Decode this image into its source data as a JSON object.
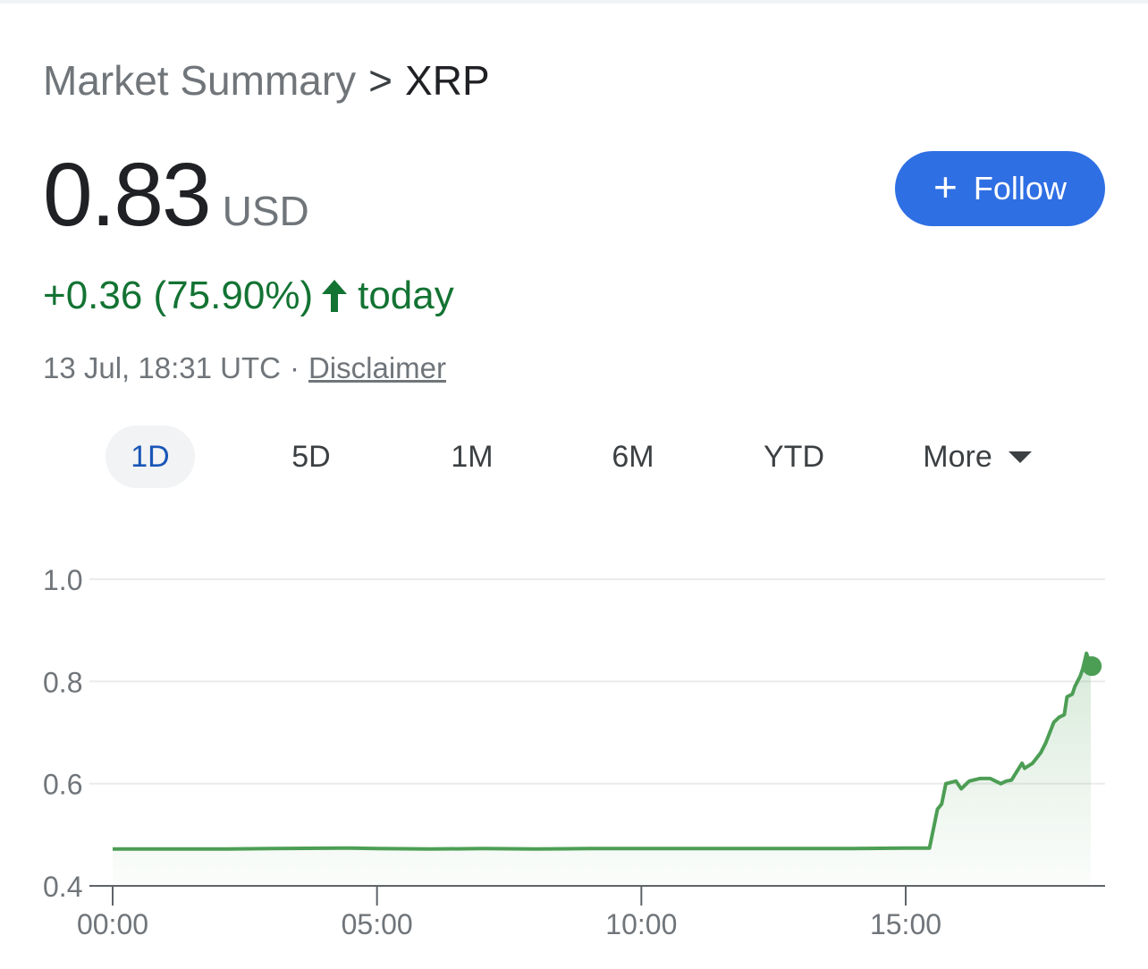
{
  "breadcrumb": {
    "root": "Market Summary",
    "separator": ">",
    "current": "XRP"
  },
  "quote": {
    "price": "0.83",
    "currency": "USD",
    "change": "+0.36 (75.90%)",
    "change_period": "today",
    "timestamp": "13 Jul, 18:31 UTC",
    "separator": "·",
    "disclaimer": "Disclaimer"
  },
  "follow_button": {
    "icon": "+",
    "label": "Follow"
  },
  "range_tabs": [
    {
      "label": "1D",
      "active": true
    },
    {
      "label": "5D",
      "active": false
    },
    {
      "label": "1M",
      "active": false
    },
    {
      "label": "6M",
      "active": false
    },
    {
      "label": "YTD",
      "active": false
    },
    {
      "label": "More",
      "active": false
    }
  ],
  "colors": {
    "positive": "#137333",
    "line": "#4c9e54",
    "accent": "#2f6fe4",
    "active_tab": "#1a56b7"
  },
  "chart_data": {
    "type": "area",
    "y_ticks": [
      "1.0",
      "0.8",
      "0.6",
      "0.4"
    ],
    "y_tick_values": [
      1.0,
      0.8,
      0.6,
      0.4
    ],
    "x_ticks": [
      "00:00",
      "05:00",
      "10:00",
      "15:00"
    ],
    "x_tick_hours": [
      0,
      5,
      10,
      15
    ],
    "ylim": [
      0.4,
      1.0
    ],
    "xlim_hours": [
      0,
      19.2
    ],
    "grid": true,
    "series": [
      {
        "x_hours": [
          0,
          1,
          2,
          3,
          4.5,
          5,
          6,
          7,
          8,
          9,
          10,
          11,
          12,
          13,
          14,
          15,
          15.45,
          15.6,
          15.68,
          15.76,
          15.95,
          16.05,
          16.2,
          16.4,
          16.6,
          16.8,
          16.9,
          17.0,
          17.2,
          17.25,
          17.4,
          17.55,
          17.65,
          17.8,
          17.9,
          18.0,
          18.05,
          18.15,
          18.2,
          18.3,
          18.35,
          18.42,
          18.5
        ],
        "y": [
          0.472,
          0.472,
          0.472,
          0.473,
          0.474,
          0.473,
          0.472,
          0.473,
          0.472,
          0.473,
          0.473,
          0.473,
          0.473,
          0.473,
          0.473,
          0.474,
          0.474,
          0.55,
          0.56,
          0.6,
          0.605,
          0.59,
          0.605,
          0.61,
          0.61,
          0.6,
          0.605,
          0.607,
          0.64,
          0.63,
          0.64,
          0.66,
          0.68,
          0.72,
          0.73,
          0.735,
          0.77,
          0.775,
          0.79,
          0.81,
          0.825,
          0.855,
          0.83
        ]
      }
    ],
    "last_point": {
      "x_hours": 18.52,
      "y": 0.83
    }
  }
}
